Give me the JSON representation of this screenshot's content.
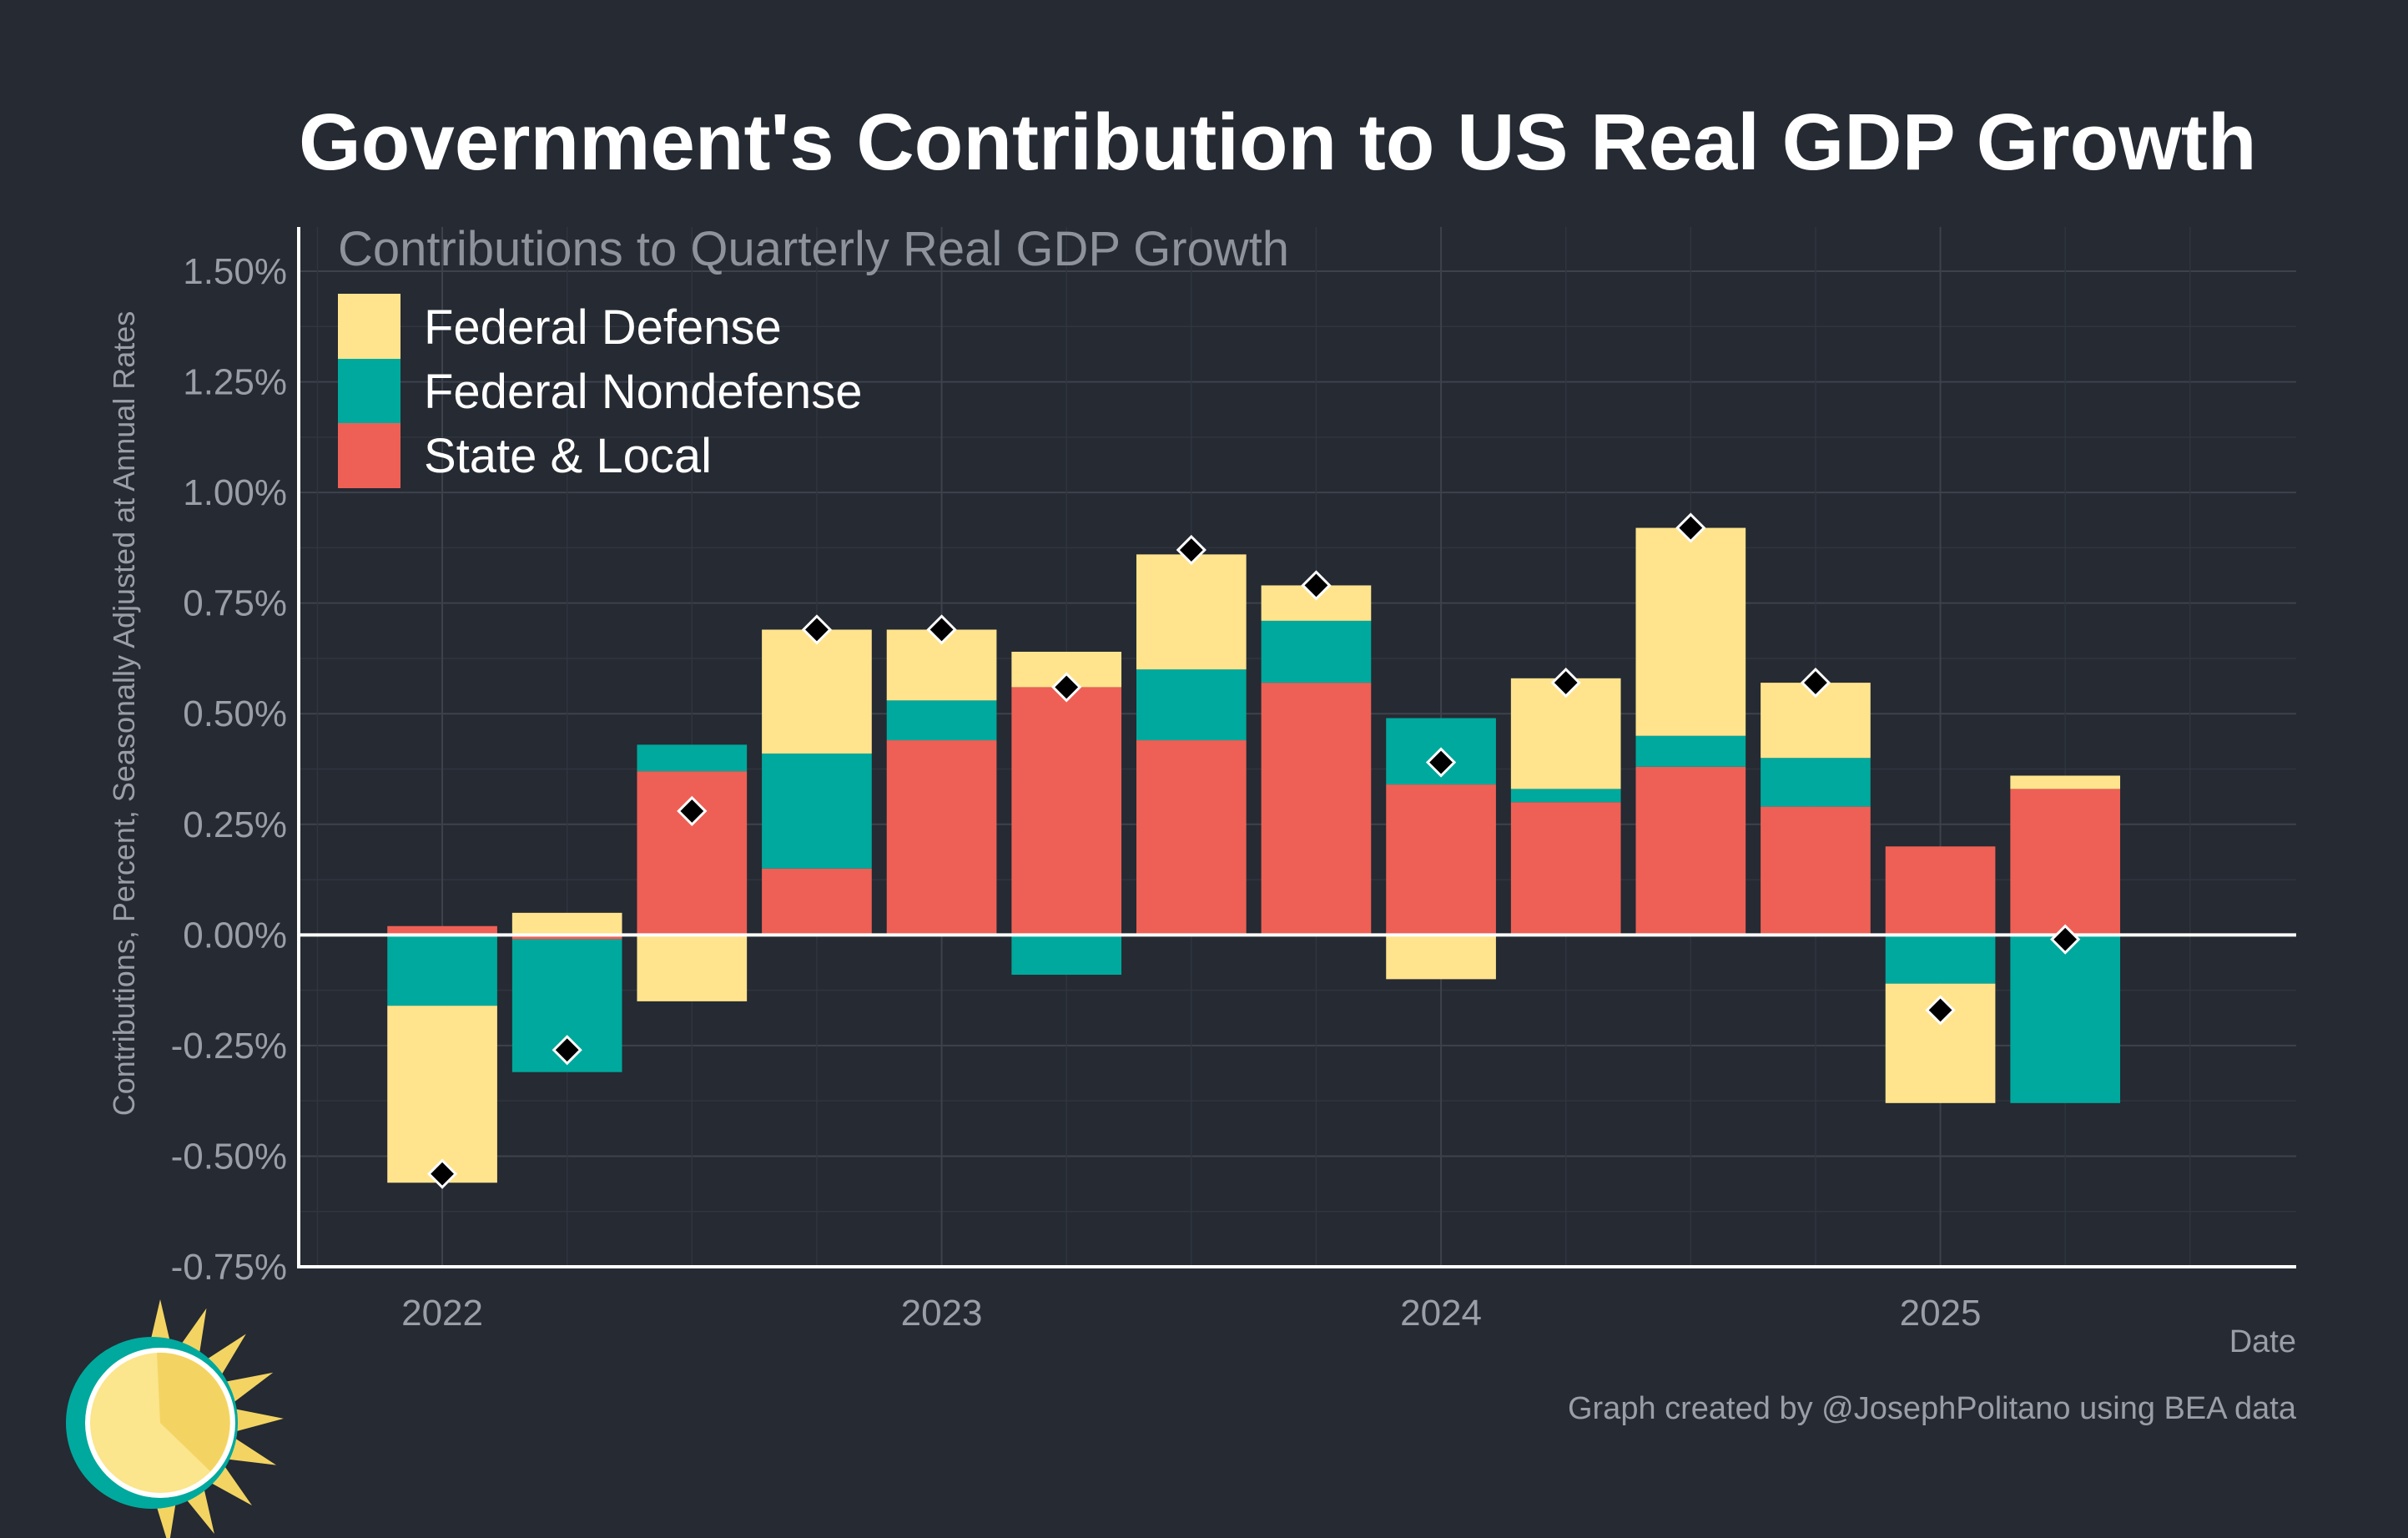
{
  "chart_data": {
    "type": "bar",
    "stacked": true,
    "title": "Government's Contribution to US Real GDP Growth",
    "subtitle": "Contributions to Quarterly Real GDP Growth",
    "xlabel": "Date",
    "ylabel": "Contributions, Percent, Seasonally Adjusted at Annual Rates",
    "caption": "Graph created by @JosephPolitano using BEA data",
    "ylim": [
      -0.75,
      1.6
    ],
    "yticks": [
      "1.50%",
      "1.25%",
      "1.00%",
      "0.75%",
      "0.50%",
      "0.25%",
      "0.00%",
      "-0.25%",
      "-0.50%",
      "-0.75%"
    ],
    "ytick_values": [
      1.5,
      1.25,
      1.0,
      0.75,
      0.5,
      0.25,
      0.0,
      -0.25,
      -0.5,
      -0.75
    ],
    "xticks": [
      "2022",
      "2023",
      "2024",
      "2025"
    ],
    "xtick_positions": [
      0,
      4,
      8,
      12
    ],
    "xlim": [
      -1.15,
      14.85
    ],
    "grid": true,
    "legend_position": "top-left",
    "categories": [
      "2022 Q1",
      "2022 Q2",
      "2022 Q3",
      "2022 Q4",
      "2023 Q1",
      "2023 Q2",
      "2023 Q3",
      "2023 Q4",
      "2024 Q1",
      "2024 Q2",
      "2024 Q3",
      "2024 Q4",
      "2025 Q1",
      "2025 Q2"
    ],
    "series": [
      {
        "name": "State & Local",
        "color": "#ee6055",
        "values": [
          0.02,
          -0.01,
          0.37,
          0.15,
          0.44,
          0.56,
          0.44,
          0.57,
          0.34,
          0.3,
          0.38,
          0.29,
          0.2,
          0.33
        ]
      },
      {
        "name": "Federal Nondefense",
        "color": "#00a99d",
        "values": [
          -0.16,
          -0.3,
          0.06,
          0.26,
          0.09,
          -0.09,
          0.16,
          0.14,
          0.15,
          0.03,
          0.07,
          0.11,
          -0.11,
          -0.38
        ]
      },
      {
        "name": "Federal Defense",
        "color": "#ffe48d",
        "values": [
          -0.4,
          0.05,
          -0.15,
          0.28,
          0.16,
          0.08,
          0.26,
          0.08,
          -0.1,
          0.25,
          0.47,
          0.17,
          -0.27,
          0.03
        ]
      }
    ],
    "totals": [
      -0.54,
      -0.26,
      0.28,
      0.69,
      0.69,
      0.56,
      0.87,
      0.79,
      0.39,
      0.57,
      0.92,
      0.57,
      -0.17,
      -0.01
    ]
  }
}
